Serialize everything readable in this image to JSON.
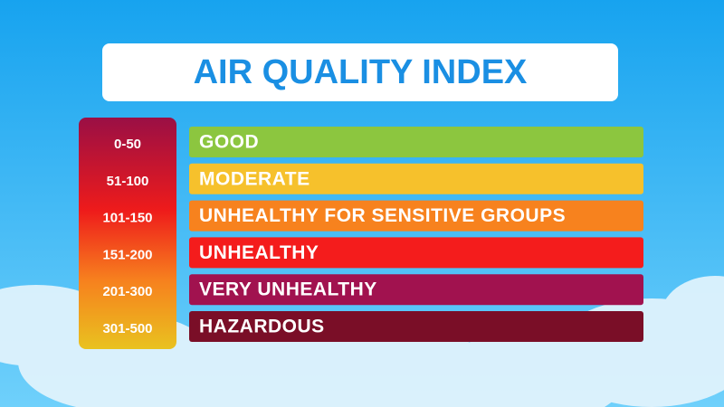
{
  "header": {
    "title": "AIR QUALITY INDEX"
  },
  "levels": [
    {
      "range": "0-50",
      "label": "GOOD",
      "color": "#8cc63f"
    },
    {
      "range": "51-100",
      "label": "MODERATE",
      "color": "#f6c12c"
    },
    {
      "range": "101-150",
      "label": "UNHEALTHY FOR SENSITIVE GROUPS",
      "color": "#f7821e"
    },
    {
      "range": "151-200",
      "label": "UNHEALTHY",
      "color": "#f41c1c"
    },
    {
      "range": "201-300",
      "label": "VERY UNHEALTHY",
      "color": "#a1124f"
    },
    {
      "range": "301-500",
      "label": "HAZARDOUS",
      "color": "#7a0e27"
    }
  ]
}
